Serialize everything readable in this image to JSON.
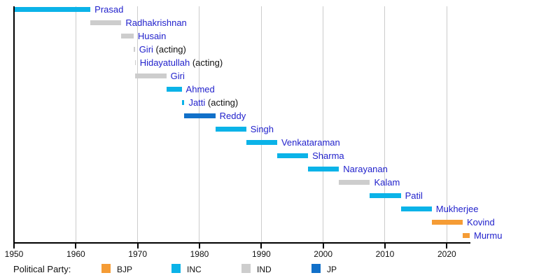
{
  "chart_data": {
    "type": "bar",
    "variant": "timeline-gantt",
    "title": "",
    "xlabel": "",
    "ylabel": "",
    "xlim": [
      1950,
      2023.7
    ],
    "x_ticks": [
      1950,
      1960,
      1970,
      1980,
      1990,
      2000,
      2010,
      2020
    ],
    "x_tick_labels": [
      "1950",
      "1960",
      "1970",
      "1980",
      "1990",
      "2000",
      "2010",
      "2020"
    ],
    "grid": "vertical-decade-lines",
    "acting_suffix": "(acting)",
    "parties": {
      "BJP": "#f59c35",
      "INC": "#0bb3e8",
      "IND": "#cdcdcd",
      "JP": "#1170c9"
    },
    "presidents": [
      {
        "name": "Prasad",
        "party": "INC",
        "start": 1950.07,
        "end": 1962.36,
        "acting": false
      },
      {
        "name": "Radhakrishnan",
        "party": "IND",
        "start": 1962.36,
        "end": 1967.36,
        "acting": false
      },
      {
        "name": "Husain",
        "party": "IND",
        "start": 1967.36,
        "end": 1969.34,
        "acting": false
      },
      {
        "name": "Giri",
        "party": "IND",
        "start": 1969.34,
        "end": 1969.55,
        "acting": true
      },
      {
        "name": "Hidayatullah",
        "party": "IND",
        "start": 1969.55,
        "end": 1969.64,
        "acting": true
      },
      {
        "name": "Giri",
        "party": "IND",
        "start": 1969.64,
        "end": 1974.64,
        "acting": false
      },
      {
        "name": "Ahmed",
        "party": "INC",
        "start": 1974.64,
        "end": 1977.12,
        "acting": false
      },
      {
        "name": "Jatti",
        "party": "INC",
        "start": 1977.12,
        "end": 1977.56,
        "acting": true
      },
      {
        "name": "Reddy",
        "party": "JP",
        "start": 1977.56,
        "end": 1982.56,
        "acting": false
      },
      {
        "name": "Singh",
        "party": "INC",
        "start": 1982.56,
        "end": 1987.56,
        "acting": false
      },
      {
        "name": "Venkataraman",
        "party": "INC",
        "start": 1987.56,
        "end": 1992.56,
        "acting": false
      },
      {
        "name": "Sharma",
        "party": "INC",
        "start": 1992.56,
        "end": 1997.56,
        "acting": false
      },
      {
        "name": "Narayanan",
        "party": "INC",
        "start": 1997.56,
        "end": 2002.56,
        "acting": false
      },
      {
        "name": "Kalam",
        "party": "IND",
        "start": 2002.56,
        "end": 2007.56,
        "acting": false
      },
      {
        "name": "Patil",
        "party": "INC",
        "start": 2007.56,
        "end": 2012.56,
        "acting": false
      },
      {
        "name": "Mukherjee",
        "party": "INC",
        "start": 2012.56,
        "end": 2017.56,
        "acting": false
      },
      {
        "name": "Kovind",
        "party": "BJP",
        "start": 2017.56,
        "end": 2022.56,
        "acting": false
      },
      {
        "name": "Murmu",
        "party": "BJP",
        "start": 2022.56,
        "end": 2023.7,
        "acting": false
      }
    ],
    "legend": {
      "title": "Political Party:",
      "entries": [
        {
          "label": "BJP",
          "party": "BJP"
        },
        {
          "label": "INC",
          "party": "INC"
        },
        {
          "label": "IND",
          "party": "IND"
        },
        {
          "label": "JP",
          "party": "JP"
        }
      ]
    }
  }
}
